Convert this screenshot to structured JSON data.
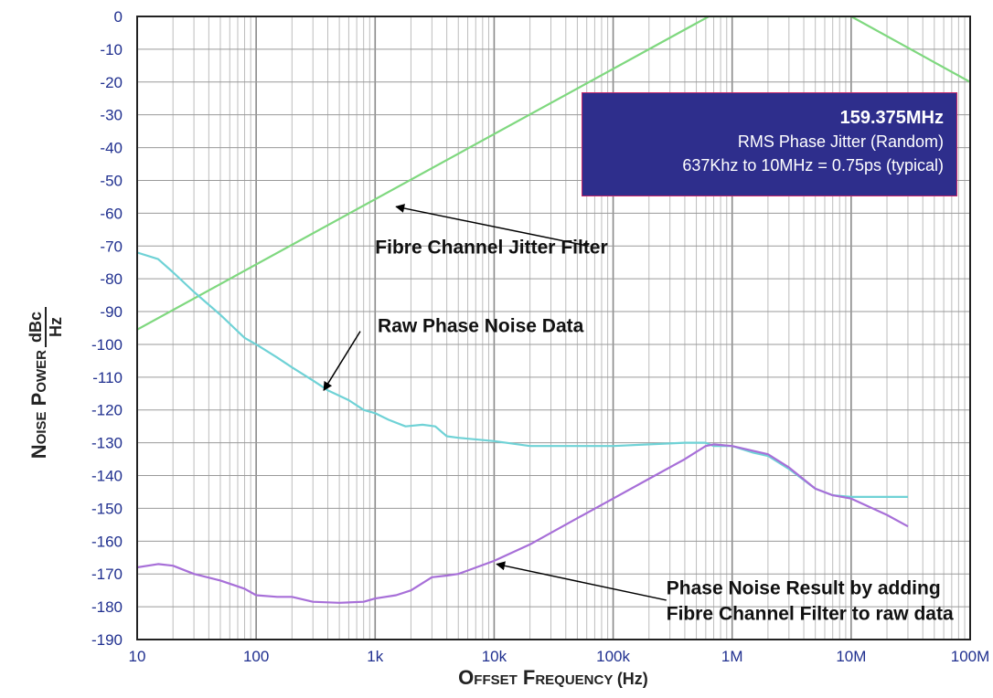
{
  "chart_data": {
    "type": "line",
    "x_scale": "log",
    "xlabel_main": "Offset Frequency",
    "xlabel_unit": "(Hz)",
    "ylabel_main": "Noise Power",
    "ylabel_num": "dBc",
    "ylabel_den": "Hz",
    "xlim": [
      10,
      100000000
    ],
    "ylim": [
      -190,
      0
    ],
    "x_ticks": [
      {
        "value": 10,
        "label": "10"
      },
      {
        "value": 100,
        "label": "100"
      },
      {
        "value": 1000,
        "label": "1k"
      },
      {
        "value": 10000,
        "label": "10k"
      },
      {
        "value": 100000,
        "label": "100k"
      },
      {
        "value": 1000000,
        "label": "1M"
      },
      {
        "value": 10000000,
        "label": "10M"
      },
      {
        "value": 100000000,
        "label": "100M"
      }
    ],
    "y_ticks": [
      0,
      -10,
      -20,
      -30,
      -40,
      -50,
      -60,
      -70,
      -80,
      -90,
      -100,
      -110,
      -120,
      -130,
      -140,
      -150,
      -160,
      -170,
      -180,
      -190
    ],
    "grid": true,
    "series": [
      {
        "key": "fibre-channel-jitter-filter",
        "color": "#7fd87f",
        "points": [
          [
            10,
            -95.5
          ],
          [
            637000,
            0
          ],
          [
            10000000,
            0
          ],
          [
            100000000,
            -20
          ]
        ]
      },
      {
        "key": "raw-phase-noise-data",
        "color": "#6fd2d6",
        "points": [
          [
            10,
            -72
          ],
          [
            15,
            -74
          ],
          [
            20,
            -78
          ],
          [
            30,
            -84
          ],
          [
            50,
            -91
          ],
          [
            80,
            -98
          ],
          [
            100,
            -100
          ],
          [
            150,
            -104
          ],
          [
            200,
            -107
          ],
          [
            300,
            -111
          ],
          [
            400,
            -114
          ],
          [
            600,
            -117
          ],
          [
            800,
            -120
          ],
          [
            1000,
            -121
          ],
          [
            1300,
            -123
          ],
          [
            1800,
            -125
          ],
          [
            2500,
            -124.5
          ],
          [
            3200,
            -125
          ],
          [
            4000,
            -128
          ],
          [
            5000,
            -128.5
          ],
          [
            10000,
            -129.5
          ],
          [
            20000,
            -131
          ],
          [
            50000,
            -131
          ],
          [
            100000,
            -131
          ],
          [
            200000,
            -130.5
          ],
          [
            400000,
            -130
          ],
          [
            600000,
            -130
          ],
          [
            700000,
            -131
          ],
          [
            1000000,
            -131
          ],
          [
            1500000,
            -133
          ],
          [
            2000000,
            -134
          ],
          [
            3000000,
            -138
          ],
          [
            5000000,
            -144
          ],
          [
            7000000,
            -146
          ],
          [
            10000000,
            -146.5
          ],
          [
            20000000,
            -146.5
          ],
          [
            30000000,
            -146.5
          ]
        ]
      },
      {
        "key": "phase-noise-result",
        "color": "#a76fd8",
        "points": [
          [
            10,
            -168
          ],
          [
            15,
            -167
          ],
          [
            20,
            -167.5
          ],
          [
            30,
            -170
          ],
          [
            50,
            -172
          ],
          [
            80,
            -174.5
          ],
          [
            100,
            -176.5
          ],
          [
            150,
            -177
          ],
          [
            200,
            -177
          ],
          [
            300,
            -178.5
          ],
          [
            500,
            -178.8
          ],
          [
            800,
            -178.5
          ],
          [
            1000,
            -177.5
          ],
          [
            1500,
            -176.5
          ],
          [
            2000,
            -175
          ],
          [
            3000,
            -171
          ],
          [
            4000,
            -170.5
          ],
          [
            5000,
            -170
          ],
          [
            10000,
            -166
          ],
          [
            20000,
            -161
          ],
          [
            50000,
            -153
          ],
          [
            100000,
            -147
          ],
          [
            200000,
            -141
          ],
          [
            400000,
            -135
          ],
          [
            600000,
            -131
          ],
          [
            700000,
            -130.5
          ],
          [
            1000000,
            -131
          ],
          [
            2000000,
            -133.5
          ],
          [
            3000000,
            -137.5
          ],
          [
            5000000,
            -144
          ],
          [
            7000000,
            -146
          ],
          [
            10000000,
            -147
          ],
          [
            20000000,
            -152
          ],
          [
            30000000,
            -155.5
          ]
        ]
      }
    ],
    "annotations": [
      {
        "key": "fibre-channel-jitter-filter",
        "lines": [
          "Fibre Channel Jitter Filter"
        ],
        "text_at": [
          1000,
          -70
        ],
        "arrow_from": [
          62000,
          -70
        ],
        "arrow_to": [
          1500,
          -58
        ]
      },
      {
        "key": "raw-phase-noise-data",
        "lines": [
          "Raw Phase Noise Data"
        ],
        "text_at": [
          1050,
          -94
        ],
        "arrow_from": [
          750,
          -96
        ],
        "arrow_to": [
          370,
          -114
        ]
      },
      {
        "key": "phase-noise-result",
        "lines": [
          "Phase Noise Result by adding",
          "Fibre Channel Filter to raw data"
        ],
        "text_at": [
          280000,
          -174
        ],
        "arrow_from": [
          280000,
          -178
        ],
        "arrow_to": [
          10500,
          -167
        ]
      }
    ]
  },
  "info_box": {
    "title": "159.375MHz",
    "line1": "RMS Phase Jitter  (Random)",
    "line2": "637Khz to 10MHz = 0.75ps (typical)"
  }
}
